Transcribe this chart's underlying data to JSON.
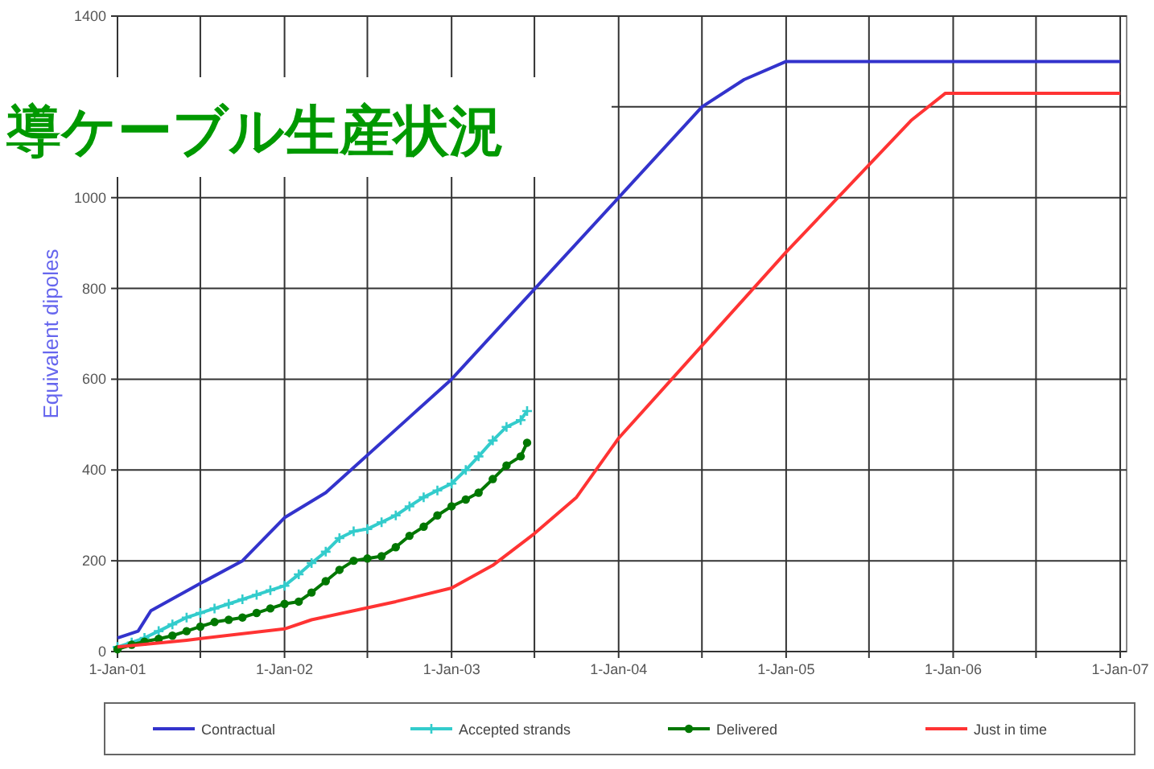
{
  "chart_data": {
    "type": "line",
    "title": "導ケーブル生産状況",
    "ylabel": "Equivalent dipoles",
    "xlim": [
      "2001-01-01",
      "2007-01-15"
    ],
    "xticks": [
      {
        "value": "2001-01-01",
        "label": "1-Jan-01"
      },
      {
        "value": "2001-07-01",
        "label": null
      },
      {
        "value": "2002-01-01",
        "label": "1-Jan-02"
      },
      {
        "value": "2002-07-01",
        "label": null
      },
      {
        "value": "2003-01-01",
        "label": "1-Jan-03"
      },
      {
        "value": "2003-07-01",
        "label": null
      },
      {
        "value": "2004-01-01",
        "label": "1-Jan-04"
      },
      {
        "value": "2004-07-01",
        "label": null
      },
      {
        "value": "2005-01-01",
        "label": "1-Jan-05"
      },
      {
        "value": "2005-07-01",
        "label": null
      },
      {
        "value": "2006-01-01",
        "label": "1-Jan-06"
      },
      {
        "value": "2006-07-01",
        "label": null
      },
      {
        "value": "2007-01-01",
        "label": "1-Jan-07"
      }
    ],
    "ylim": [
      0,
      1400
    ],
    "yticks": [
      0,
      200,
      400,
      600,
      800,
      1000,
      {
        "value": 1200,
        "label": null
      },
      1400
    ],
    "grid": true,
    "legend": "bottom",
    "series": [
      {
        "name": "Contractual",
        "color": "#3333cc",
        "marker": "none",
        "x": [
          "2001-01-01",
          "2001-02-15",
          "2001-03-15",
          "2001-07-01",
          "2001-10-01",
          "2002-01-01",
          "2002-04-01",
          "2003-01-01",
          "2004-01-01",
          "2004-07-01",
          "2004-10-01",
          "2005-01-01",
          "2007-01-01"
        ],
        "values": [
          30,
          45,
          90,
          150,
          200,
          295,
          350,
          600,
          1000,
          1200,
          1260,
          1300,
          1300
        ]
      },
      {
        "name": "Accepted strands",
        "color": "#33cccc",
        "marker": "cross",
        "x": [
          "2001-01-01",
          "2001-02-01",
          "2001-03-01",
          "2001-04-01",
          "2001-05-01",
          "2001-06-01",
          "2001-07-01",
          "2001-08-01",
          "2001-09-01",
          "2001-10-01",
          "2001-11-01",
          "2001-12-01",
          "2002-01-01",
          "2002-02-01",
          "2002-03-01",
          "2002-04-01",
          "2002-05-01",
          "2002-06-01",
          "2002-07-01",
          "2002-08-01",
          "2002-09-01",
          "2002-10-01",
          "2002-11-01",
          "2002-12-01",
          "2003-01-01",
          "2003-02-01",
          "2003-03-01",
          "2003-04-01",
          "2003-05-01",
          "2003-06-01",
          "2003-06-15"
        ],
        "values": [
          10,
          20,
          30,
          45,
          60,
          75,
          85,
          95,
          105,
          115,
          125,
          135,
          145,
          170,
          195,
          220,
          250,
          265,
          270,
          285,
          300,
          320,
          340,
          355,
          370,
          400,
          430,
          465,
          495,
          510,
          530
        ]
      },
      {
        "name": "Delivered",
        "color": "#007700",
        "marker": "circle",
        "x": [
          "2001-01-01",
          "2001-02-01",
          "2001-03-01",
          "2001-04-01",
          "2001-05-01",
          "2001-06-01",
          "2001-07-01",
          "2001-08-01",
          "2001-09-01",
          "2001-10-01",
          "2001-11-01",
          "2001-12-01",
          "2002-01-01",
          "2002-02-01",
          "2002-03-01",
          "2002-04-01",
          "2002-05-01",
          "2002-06-01",
          "2002-07-01",
          "2002-08-01",
          "2002-09-01",
          "2002-10-01",
          "2002-11-01",
          "2002-12-01",
          "2003-01-01",
          "2003-02-01",
          "2003-03-01",
          "2003-04-01",
          "2003-05-01",
          "2003-06-01",
          "2003-06-15"
        ],
        "values": [
          5,
          15,
          22,
          28,
          35,
          45,
          55,
          65,
          70,
          75,
          85,
          95,
          105,
          110,
          130,
          155,
          180,
          200,
          205,
          210,
          230,
          255,
          275,
          300,
          320,
          335,
          350,
          380,
          410,
          430,
          460
        ]
      },
      {
        "name": "Just in time",
        "color": "#ff3333",
        "marker": "none",
        "x": [
          "2001-01-01",
          "2001-06-01",
          "2002-01-01",
          "2002-03-01",
          "2002-06-01",
          "2002-09-01",
          "2003-01-01",
          "2003-04-01",
          "2003-07-01",
          "2003-10-01",
          "2004-01-01",
          "2005-01-01",
          "2005-10-01",
          "2005-12-15",
          "2007-01-01"
        ],
        "values": [
          10,
          25,
          50,
          70,
          90,
          110,
          140,
          190,
          260,
          340,
          470,
          880,
          1170,
          1230,
          1230
        ]
      }
    ]
  }
}
